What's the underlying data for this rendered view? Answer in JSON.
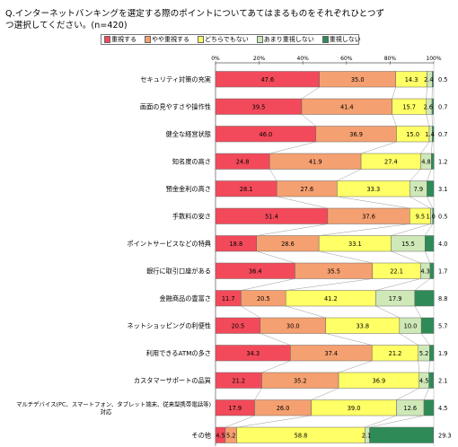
{
  "question": "Q.インターネットバンキングを選定する際のポイントについてあてはまるものをそれぞれひとつずつ選択してください。(n=420)",
  "chart_data": {
    "type": "bar",
    "orientation": "horizontal",
    "stacked": true,
    "xlim": [
      0,
      100
    ],
    "x_ticks": [
      "0%",
      "20%",
      "40%",
      "60%",
      "80%",
      "100%"
    ],
    "legend": {
      "position": "top",
      "entries": [
        "重視する",
        "やや重視する",
        "どちらでもない",
        "あまり重視しない",
        "重視しない"
      ]
    },
    "colors": [
      "#f24a5a",
      "#f5a070",
      "#ffff66",
      "#cfe8b8",
      "#2e8b57"
    ],
    "categories": [
      "セキュリティ対策の充実",
      "画面の見やすさや操作性",
      "健全な経営状態",
      "知名度の高さ",
      "預金金利の高さ",
      "手数料の安さ",
      "ポイントサービスなどの特典",
      "銀行に取引口座がある",
      "金融商品の豊富さ",
      "ネットショッピングの利便性",
      "利用できるATMの多さ",
      "カスタマーサポートの品質",
      "マルチデバイス(PC、スマートフォン、タブレット端末、従来型携帯電話等)対応",
      "その他"
    ],
    "series": [
      {
        "name": "重視する",
        "values": [
          47.6,
          39.5,
          46.0,
          24.8,
          28.1,
          51.4,
          18.8,
          36.4,
          11.7,
          20.5,
          34.3,
          21.2,
          17.9,
          4.5
        ]
      },
      {
        "name": "やや重視する",
        "values": [
          35.0,
          41.4,
          36.9,
          41.9,
          27.6,
          37.6,
          28.6,
          35.5,
          20.5,
          30.0,
          37.4,
          35.2,
          26.0,
          5.2
        ]
      },
      {
        "name": "どちらでもない",
        "values": [
          14.3,
          15.7,
          15.0,
          27.4,
          33.3,
          9.5,
          33.1,
          22.1,
          41.2,
          33.8,
          21.2,
          36.9,
          39.0,
          58.8
        ]
      },
      {
        "name": "あまり重視しない",
        "values": [
          2.4,
          2.6,
          1.4,
          4.8,
          7.9,
          1.0,
          15.5,
          4.3,
          17.9,
          10.0,
          5.2,
          4.5,
          12.6,
          2.1
        ]
      },
      {
        "name": "重視しない",
        "values": [
          0.5,
          0.7,
          0.7,
          1.2,
          3.1,
          0.5,
          4.0,
          1.7,
          8.8,
          5.7,
          1.9,
          2.1,
          4.5,
          29.3
        ]
      }
    ],
    "labels": [
      [
        "47.6",
        "35.0",
        "14.3",
        "2.4",
        "0.5"
      ],
      [
        "39.5",
        "41.4",
        "15.7",
        "2.6",
        "0.7"
      ],
      [
        "46.0",
        "36.9",
        "15.0",
        "1.4",
        "0.7"
      ],
      [
        "24.8",
        "41.9",
        "27.4",
        "4.8",
        "1.2"
      ],
      [
        "28.1",
        "27.6",
        "33.3",
        "7.9",
        "3.1"
      ],
      [
        "51.4",
        "37.6",
        "9.5",
        "1.0",
        "0.5"
      ],
      [
        "18.8",
        "28.6",
        "33.1",
        "15.5",
        "4.0"
      ],
      [
        "36.4",
        "35.5",
        "22.1",
        "4.3",
        "1.7"
      ],
      [
        "11.7",
        "20.5",
        "41.2",
        "17.9",
        "8.8"
      ],
      [
        "20.5",
        "30.0",
        "33.8",
        "10.0",
        "5.7"
      ],
      [
        "34.3",
        "37.4",
        "21.2",
        "5.2",
        "1.9"
      ],
      [
        "21.2",
        "35.2",
        "36.9",
        "4.5",
        "2.1"
      ],
      [
        "17.9",
        "26.0",
        "39.0",
        "12.6",
        "4.5"
      ],
      [
        "4.5",
        "5.2",
        "58.8",
        "2.1",
        "29.3"
      ]
    ]
  }
}
